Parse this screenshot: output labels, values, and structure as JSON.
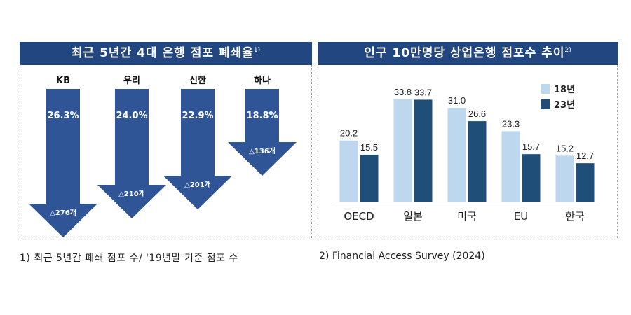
{
  "left_panel": {
    "title": "최근 5년간 4대 은행 점포 폐쇄율",
    "title_note": "1)"
  },
  "right_panel": {
    "title": "인구 10만명당 상업은행 점포수 추이",
    "title_note": "2)"
  },
  "footnotes": [
    "1) 최근 5년간 폐쇄 점포 수/ '19년말 기준 점포 수",
    "2) Financial Access Survey (2024)"
  ],
  "colors": {
    "header_bg": "#22467f",
    "arrow": "#2f5597",
    "series_18": "#bdd7ee",
    "series_23": "#1f4e79"
  },
  "chart_data": [
    {
      "type": "bar",
      "title": "최근 5년간 4대 은행 점포 폐쇄율",
      "categories": [
        "KB",
        "우리",
        "신한",
        "하나"
      ],
      "series": [
        {
          "name": "폐쇄율 (%)",
          "values": [
            26.3,
            24.0,
            22.9,
            18.8
          ],
          "labels": [
            "26.3%",
            "24.0%",
            "22.9%",
            "18.8%"
          ]
        },
        {
          "name": "폐쇄 점포 수 (개)",
          "values": [
            276,
            210,
            201,
            136
          ],
          "labels": [
            "△276개",
            "△210개",
            "△201개",
            "△136개"
          ]
        }
      ],
      "orientation": "downward-arrows",
      "xlabel": "",
      "ylabel": ""
    },
    {
      "type": "bar",
      "title": "인구 10만명당 상업은행 점포수 추이",
      "categories": [
        "OECD",
        "일본",
        "미국",
        "EU",
        "한국"
      ],
      "series": [
        {
          "name": "18년",
          "values": [
            20.2,
            33.8,
            31.0,
            23.3,
            15.2
          ]
        },
        {
          "name": "23년",
          "values": [
            15.5,
            33.7,
            26.6,
            15.7,
            12.7
          ]
        }
      ],
      "ylim": [
        0,
        35
      ],
      "legend": "top-right",
      "grid": false,
      "xlabel": "",
      "ylabel": ""
    }
  ]
}
